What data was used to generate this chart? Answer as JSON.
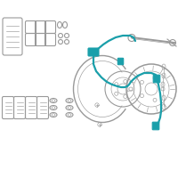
{
  "bg_color": "#ffffff",
  "highlight_color": "#1a9faa",
  "part_color": "#c0c0c0",
  "part_edge": "#999999",
  "fig_bg": "#ffffff",
  "lw_main": 0.8,
  "lw_light": 0.45,
  "lw_highlight": 1.6
}
